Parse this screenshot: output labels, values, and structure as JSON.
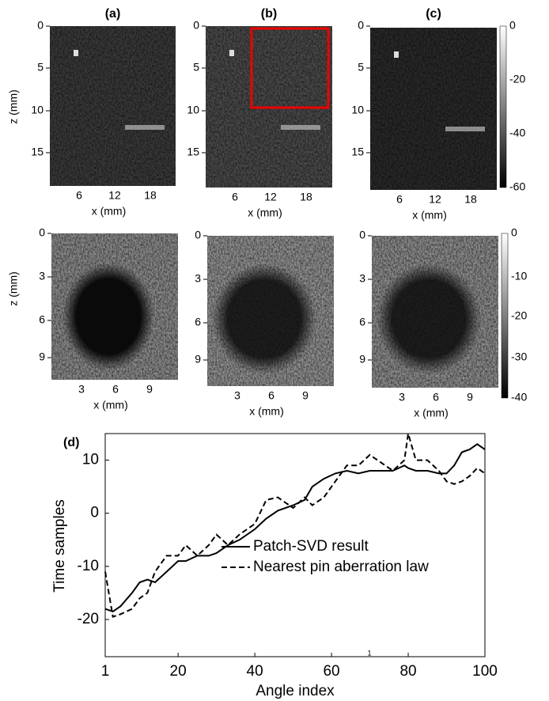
{
  "panels": {
    "labels": [
      "(a)",
      "(b)",
      "(c)"
    ],
    "top": {
      "zticks": [
        0,
        5,
        10,
        15
      ],
      "xticks": [
        6,
        12,
        18
      ],
      "xlabel": "x (mm)",
      "zlabel": "z (mm)",
      "colorbar": [
        0,
        -20,
        -40,
        -60
      ]
    },
    "bottom": {
      "zticks": [
        0,
        3,
        6,
        9
      ],
      "xticks": [
        3,
        6,
        9
      ],
      "xlabel": "x (mm)",
      "zlabel": "z (mm)",
      "colorbar": [
        0,
        -10,
        -20,
        -30,
        -40
      ]
    }
  },
  "chart_data": {
    "type": "line",
    "panel_label": "(d)",
    "x_label": "Angle index",
    "y_label": "Time samples",
    "annotation": "1",
    "x": [
      1,
      3,
      5,
      8,
      10,
      12,
      14,
      17,
      20,
      22,
      25,
      28,
      30,
      33,
      36,
      40,
      43,
      46,
      50,
      53,
      55,
      58,
      61,
      64,
      67,
      70,
      73,
      76,
      79,
      80,
      82,
      85,
      88,
      90,
      92,
      94,
      96,
      98,
      100
    ],
    "series": [
      {
        "name": "Patch-SVD result",
        "color": "#000000",
        "dash": "solid",
        "values": [
          -18,
          -18.5,
          -17.5,
          -15,
          -13,
          -12.5,
          -13,
          -11,
          -9,
          -9,
          -8,
          -8,
          -7.5,
          -6,
          -5,
          -3,
          -1,
          0.5,
          1.5,
          2.5,
          5,
          6.5,
          7.5,
          8,
          7.5,
          8,
          8,
          8,
          9,
          8.5,
          8,
          8,
          7.5,
          7.5,
          9,
          11.5,
          12,
          13,
          12
        ]
      },
      {
        "name": "Nearest pin aberration law",
        "color": "#000000",
        "dash": "dashed",
        "values": [
          -11,
          -19.5,
          -19,
          -18,
          -16,
          -15,
          -11,
          -8,
          -8,
          -6,
          -8,
          -6,
          -4,
          -6,
          -4,
          -2,
          2.5,
          3,
          1,
          3,
          1.5,
          3,
          6,
          9,
          9,
          11,
          9.5,
          8,
          10,
          15,
          10,
          10,
          8,
          6,
          5.5,
          6,
          7,
          8.5,
          7.5
        ]
      }
    ],
    "xlim": [
      1,
      100
    ],
    "ylim": [
      -27,
      15
    ],
    "xticks": [
      1,
      20,
      40,
      60,
      80,
      100
    ],
    "yticks": [
      -20,
      -10,
      0,
      10
    ]
  }
}
